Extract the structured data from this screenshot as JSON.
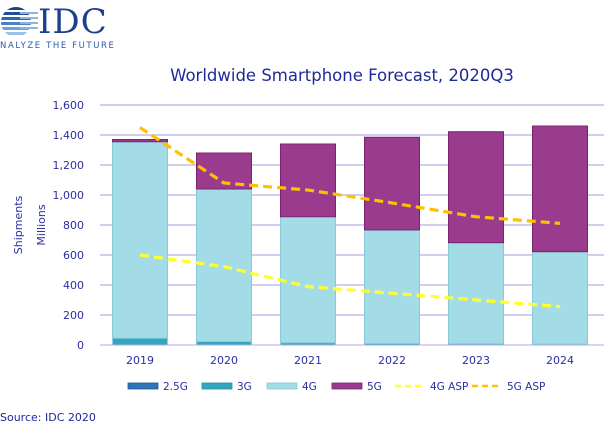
{
  "logo": {
    "name": "IDC",
    "tagline": "NALYZE THE FUTURE"
  },
  "source": "Source: IDC 2020",
  "colors": {
    "2.5G": "#2e75b6",
    "3G": "#31a6bc",
    "4G": "#a3dbe6",
    "5G": "#9b3b8e",
    "4G ASP": "#ffff33",
    "5G ASP": "#ffc000",
    "grid": "#c4bcec",
    "text": "#2b2fa0"
  },
  "chart_data": {
    "type": "bar",
    "stacked": true,
    "title": "Worldwide Smartphone Forecast, 2020Q3",
    "xlabel": "",
    "ylabel": "Shipments",
    "ylabel2": "Millions",
    "ylim": [
      0,
      1600
    ],
    "yticks": [
      0,
      200,
      400,
      600,
      800,
      1000,
      1200,
      1400,
      1600
    ],
    "ytick_labels": [
      "0",
      "200",
      "400",
      "600",
      "800",
      "1,000",
      "1,200",
      "1,400",
      "1,600"
    ],
    "grid": true,
    "legend_position": "bottom",
    "categories": [
      "2019",
      "2020",
      "2021",
      "2022",
      "2023",
      "2024"
    ],
    "series": [
      {
        "name": "2.5G",
        "kind": "bar",
        "values": [
          2,
          1,
          0,
          0,
          0,
          0
        ]
      },
      {
        "name": "3G",
        "kind": "bar",
        "values": [
          43,
          22,
          15,
          10,
          8,
          6
        ]
      },
      {
        "name": "4G",
        "kind": "bar",
        "values": [
          1310,
          1017,
          840,
          757,
          674,
          616
        ]
      },
      {
        "name": "5G",
        "kind": "bar",
        "values": [
          15,
          240,
          485,
          618,
          740,
          838
        ]
      },
      {
        "name": "4G ASP",
        "kind": "line",
        "values": [
          600,
          522,
          389,
          345,
          300,
          256
        ]
      },
      {
        "name": "5G ASP",
        "kind": "line",
        "values": [
          1450,
          1080,
          1033,
          947,
          855,
          811
        ]
      }
    ]
  }
}
